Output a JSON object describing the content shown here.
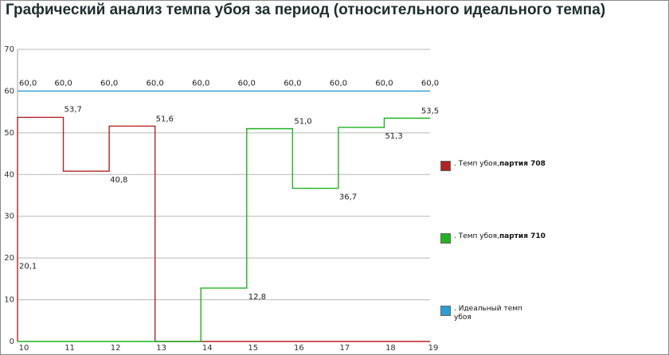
{
  "title": "Графический анализ темпа убоя за период (относительного идеального темпа)",
  "chart_data": {
    "type": "line",
    "step": true,
    "xlim": [
      10,
      19
    ],
    "ylim": [
      0,
      70
    ],
    "x_ticks": [
      10,
      11,
      12,
      13,
      14,
      15,
      16,
      17,
      18,
      19
    ],
    "y_ticks": [
      0,
      10,
      20,
      30,
      40,
      50,
      60,
      70
    ],
    "grid": true,
    "legend_position": "right",
    "series": [
      {
        "name": "Темп убоя, партия 708",
        "legend_prefix": ". Темп убоя,",
        "legend_bold": "партия 708",
        "color": "#b22222",
        "x": [
          10,
          11,
          12,
          13,
          14,
          15,
          16,
          17,
          18,
          19
        ],
        "values": [
          53.7,
          40.8,
          51.6,
          0,
          0,
          0,
          0,
          0,
          0,
          0
        ],
        "labels": [
          {
            "x": 10,
            "value": 20.1,
            "text": "20,1"
          },
          {
            "x": 11,
            "value": 53.7,
            "text": "53,7"
          },
          {
            "x": 12,
            "value": 40.8,
            "text": "40,8"
          },
          {
            "x": 13,
            "value": 51.6,
            "text": "51,6"
          }
        ]
      },
      {
        "name": "Темп убоя, партия 710",
        "legend_prefix": ". Темп убоя,",
        "legend_bold": "партия 710",
        "color": "#1fb31f",
        "x": [
          10,
          11,
          12,
          13,
          14,
          15,
          16,
          17,
          18,
          19
        ],
        "values": [
          0,
          0,
          0,
          0,
          12.8,
          51.0,
          36.7,
          51.3,
          53.5,
          53.5
        ],
        "labels": [
          {
            "x": 15,
            "value": 12.8,
            "text": "12,8"
          },
          {
            "x": 16,
            "value": 51.0,
            "text": "51,0"
          },
          {
            "x": 17,
            "value": 36.7,
            "text": "36,7"
          },
          {
            "x": 18,
            "value": 51.3,
            "text": "51,3"
          },
          {
            "x": 19,
            "value": 53.5,
            "text": "53,5"
          }
        ]
      },
      {
        "name": "Идеальный темп убоя",
        "legend_prefix": ". Идеальный темп убоя",
        "legend_bold": "",
        "color": "#2a9fd6",
        "x": [
          10,
          11,
          12,
          13,
          14,
          15,
          16,
          17,
          18,
          19
        ],
        "values": [
          60,
          60,
          60,
          60,
          60,
          60,
          60,
          60,
          60,
          60
        ],
        "labels": [
          {
            "x": 10,
            "value": 60,
            "text": "60,0"
          },
          {
            "x": 11,
            "value": 60,
            "text": "60,0"
          },
          {
            "x": 12,
            "value": 60,
            "text": "60,0"
          },
          {
            "x": 13,
            "value": 60,
            "text": "60,0"
          },
          {
            "x": 14,
            "value": 60,
            "text": "60,0"
          },
          {
            "x": 15,
            "value": 60,
            "text": "60,0"
          },
          {
            "x": 16,
            "value": 60,
            "text": "60,0"
          },
          {
            "x": 17,
            "value": 60,
            "text": "60,0"
          },
          {
            "x": 18,
            "value": 60,
            "text": "60,0"
          },
          {
            "x": 19,
            "value": 60,
            "text": "60,0"
          }
        ]
      }
    ]
  }
}
